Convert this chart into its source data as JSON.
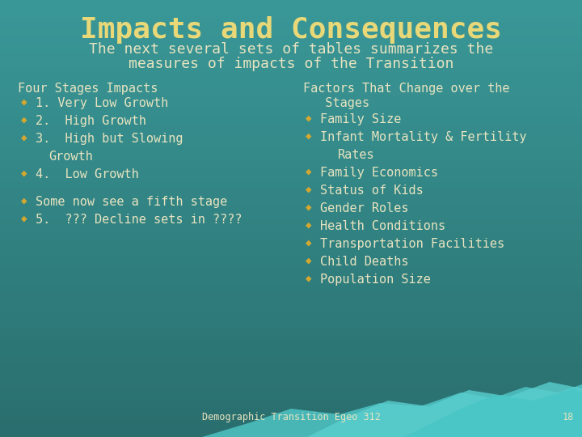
{
  "title": "Impacts and Consequences",
  "subtitle_line1": "The next several sets of tables summarizes the",
  "subtitle_line2": "measures of impacts of the Transition",
  "title_color": "#E8D878",
  "subtitle_color": "#E8E4C0",
  "body_text_color": "#E8E4C0",
  "bullet_color": "#D4A830",
  "footer_text": "Demographic Transition Egeo 312",
  "footer_number": "18",
  "left_header": "Four Stages Impacts",
  "left_bullets": [
    "1. Very Low Growth",
    "2.  High Growth",
    "3.  High but Slowing",
    "    Growth",
    "4.  Low Growth"
  ],
  "left_bullets_is_indent": [
    false,
    false,
    false,
    true,
    false
  ],
  "left_bullets2": [
    "Some now see a fifth stage",
    "5.  ??? Decline sets in ????"
  ],
  "right_header1": "Factors That Change over the",
  "right_header2": "   Stages",
  "right_bullets": [
    "Family Size",
    "Infant Mortality & Fertility",
    "   Rates",
    "Family Economics",
    "Status of Kids",
    "Gender Roles",
    "Health Conditions",
    "Transportation Facilities",
    "Child Deaths",
    "Population Size"
  ],
  "right_bullets_is_indent": [
    false,
    false,
    true,
    false,
    false,
    false,
    false,
    false,
    false,
    false
  ]
}
